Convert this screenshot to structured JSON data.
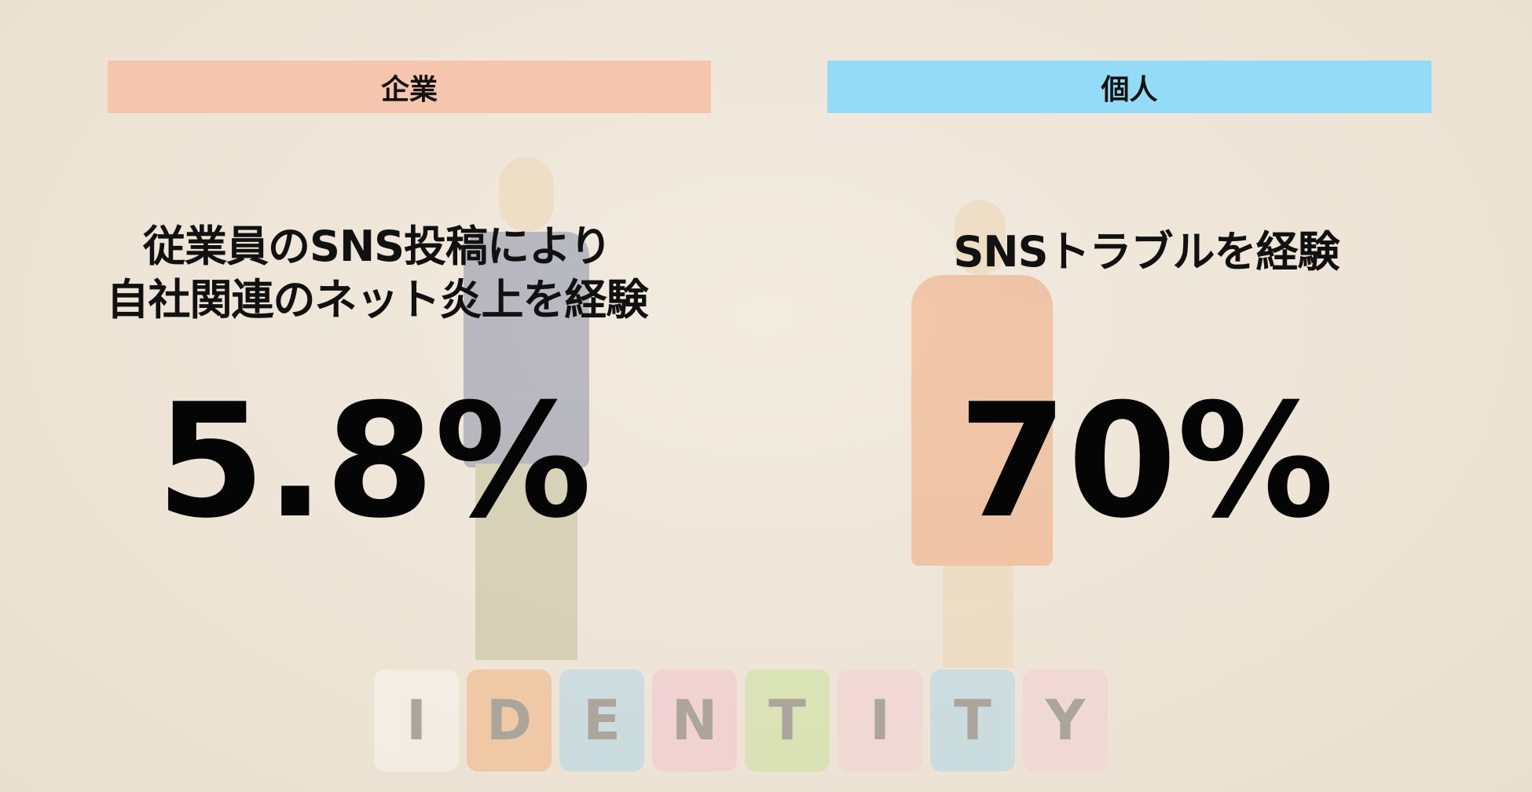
{
  "left": {
    "label": "企業",
    "heading_lines": [
      "従業員のSNS投稿により",
      "自社関連のネット炎上を経験"
    ],
    "value": "5.8%",
    "color": "#f5c6ad"
  },
  "right": {
    "label": "個人",
    "heading_lines": [
      "SNSトラブルを経験"
    ],
    "value": "70%",
    "color": "#93dbf6"
  },
  "background": {
    "blocks": [
      "I",
      "D",
      "E",
      "N",
      "T",
      "I",
      "T",
      "Y"
    ],
    "block_colors": [
      "#ffffff",
      "#f39a4f",
      "#8fd0ef",
      "#f7b3c9",
      "#b7e07a",
      "#f7c4d4",
      "#8fd0ef",
      "#f7c4d4"
    ]
  }
}
